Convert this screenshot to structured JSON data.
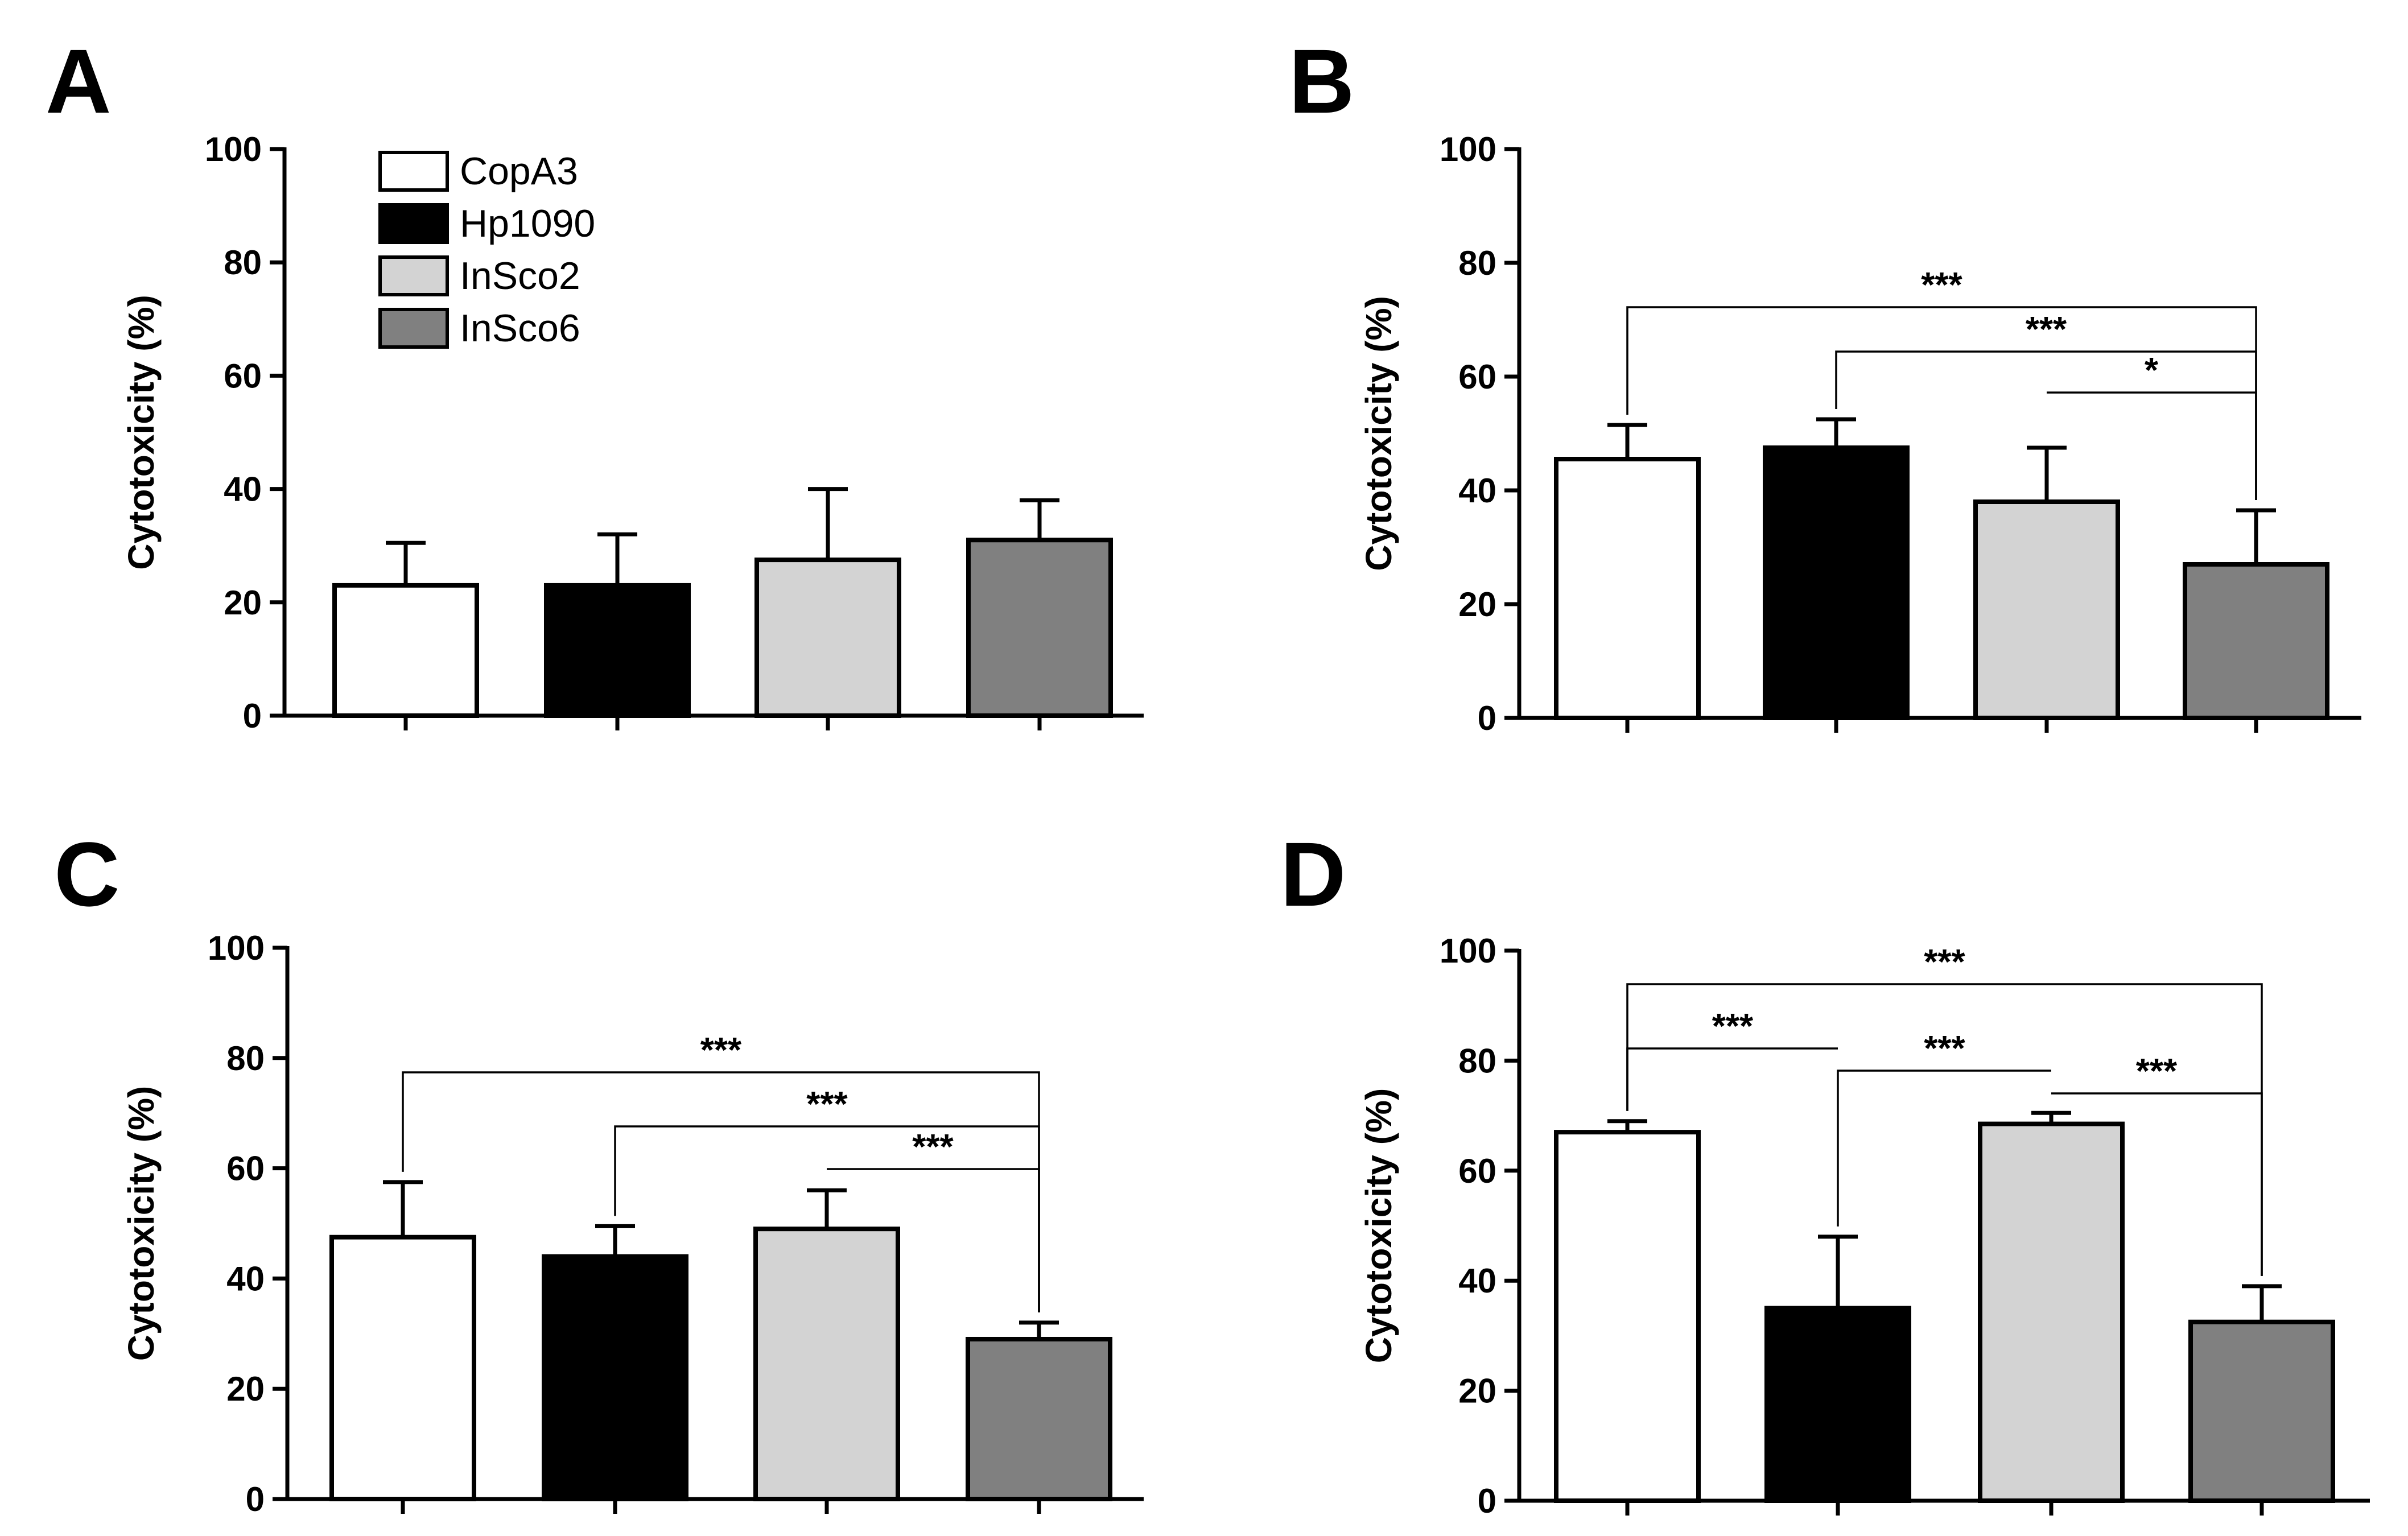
{
  "chart_data": [
    {
      "panel": "A",
      "type": "bar",
      "categories": [
        "CopA3",
        "Hp1090",
        "InSco2",
        "InSco6"
      ],
      "series": [
        {
          "name": "Cytotoxicity",
          "values": [
            23,
            23,
            27.5,
            31
          ],
          "errors": [
            7.5,
            9,
            12.5,
            7
          ]
        }
      ],
      "ylabel": "Cytotoxicity (%)",
      "ylim": [
        0,
        100
      ],
      "yticks": [
        "0",
        "20",
        "40",
        "60",
        "80",
        "100"
      ],
      "colors": [
        "#ffffff",
        "#000000",
        "#d3d3d3",
        "#808080"
      ],
      "legend": {
        "placement": "top-left",
        "entries": [
          "CopA3",
          "Hp1090",
          "InSco2",
          "InSco6"
        ]
      },
      "annotations": []
    },
    {
      "panel": "B",
      "type": "bar",
      "categories": [
        "CopA3",
        "Hp1090",
        "InSco2",
        "InSco6"
      ],
      "series": [
        {
          "name": "Cytotoxicity",
          "values": [
            45.5,
            47.5,
            38,
            27
          ],
          "errors": [
            6,
            5,
            9.5,
            9.5
          ]
        }
      ],
      "ylabel": "Cytotoxicity (%)",
      "ylim": [
        0,
        100
      ],
      "yticks": [
        "0",
        "20",
        "40",
        "60",
        "80",
        "100"
      ],
      "colors": [
        "#ffffff",
        "#000000",
        "#d3d3d3",
        "#808080"
      ],
      "annotations": [
        {
          "from": 0,
          "to": 3,
          "label": "***"
        },
        {
          "from": 1,
          "to": 3,
          "label": "***"
        },
        {
          "from": 2,
          "to": 3,
          "label": "*"
        }
      ]
    },
    {
      "panel": "C",
      "type": "bar",
      "categories": [
        "CopA3",
        "Hp1090",
        "InSco2",
        "InSco6"
      ],
      "series": [
        {
          "name": "Cytotoxicity",
          "values": [
            47.5,
            44,
            49,
            29
          ],
          "errors": [
            10,
            5.5,
            7,
            3
          ]
        }
      ],
      "ylabel": "Cytotoxicity (%)",
      "ylim": [
        0,
        100
      ],
      "yticks": [
        "0",
        "20",
        "40",
        "60",
        "80",
        "100"
      ],
      "colors": [
        "#ffffff",
        "#000000",
        "#d3d3d3",
        "#808080"
      ],
      "annotations": [
        {
          "from": 0,
          "to": 3,
          "label": "***"
        },
        {
          "from": 1,
          "to": 3,
          "label": "***"
        },
        {
          "from": 2,
          "to": 3,
          "label": "***"
        }
      ]
    },
    {
      "panel": "D",
      "type": "bar",
      "categories": [
        "CopA3",
        "Hp1090",
        "InSco2",
        "InSco6"
      ],
      "series": [
        {
          "name": "Cytotoxicity",
          "values": [
            67,
            35,
            68.5,
            32.5
          ],
          "errors": [
            2,
            13,
            2,
            6.5
          ]
        }
      ],
      "ylabel": "Cytotoxicity (%)",
      "ylim": [
        0,
        100
      ],
      "yticks": [
        "0",
        "20",
        "40",
        "60",
        "80",
        "100"
      ],
      "colors": [
        "#ffffff",
        "#000000",
        "#d3d3d3",
        "#808080"
      ],
      "annotations": [
        {
          "from": 0,
          "to": 3,
          "label": "***"
        },
        {
          "from": 0,
          "to": 1,
          "label": "***"
        },
        {
          "from": 1,
          "to": 2,
          "label": "***"
        },
        {
          "from": 2,
          "to": 3,
          "label": "***"
        }
      ]
    }
  ]
}
